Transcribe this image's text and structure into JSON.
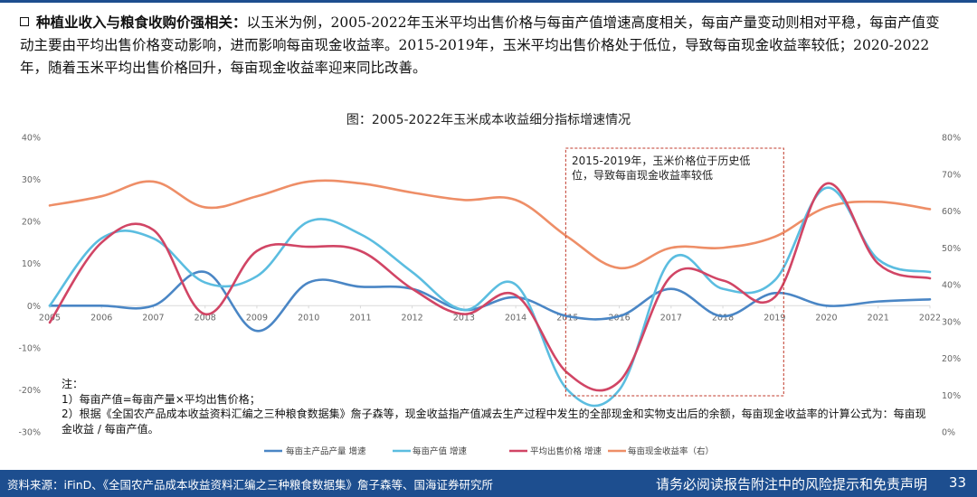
{
  "intro": {
    "lead": "种植业收入与粮食收购价强相关：",
    "body": "以玉米为例，2005-2022年玉米平均出售价格与每亩产值增速高度相关，每亩产量变动则相对平稳，每亩产值变动主要由平均出售价格变动影响，进而影响每亩现金收益率。2015-2019年，玉米平均出售价格处于低位，导致每亩现金收益率较低；2020-2022年，随着玉米平均出售价格回升，每亩现金收益率迎来同比改善。"
  },
  "annotation": {
    "line1": "2015-2019年，玉米价格位于历史低",
    "line2": "位，导致每亩现金收益率较低"
  },
  "notes": {
    "title": "注：",
    "n1": "1）每亩产值=每亩产量×平均出售价格；",
    "n2": "2）根据《全国农产品成本收益资料汇编之三种粮食数据集》詹子森等，现金收益指产值减去生产过程中发生的全部现金和实物支出后的余额，每亩现金收益率的计算公式为：每亩现金收益 / 每亩产值。"
  },
  "footer": {
    "source": "资料来源：iFinD、《全国农产品成本收益资料汇编之三种粮食数据集》詹子森等、国海证券研究所",
    "disclaimer": "请务必阅读报告附注中的风险提示和免责声明",
    "page": "33"
  },
  "colors": {
    "yield": "#4a86c5",
    "output": "#5bbde0",
    "price": "#d14565",
    "cash": "#ee8e67",
    "accent": "#1d4e8f",
    "highlight_box": "#c0392b"
  },
  "chart_data": {
    "type": "line",
    "title": "图：2005-2022年玉米成本收益细分指标增速情况",
    "x": [
      "2005",
      "2006",
      "2007",
      "2008",
      "2009",
      "2010",
      "2011",
      "2012",
      "2013",
      "2014",
      "2015",
      "2016",
      "2017",
      "2018",
      "2019",
      "2020",
      "2021",
      "2022"
    ],
    "y_left": {
      "ticks": [
        "40%",
        "30%",
        "20%",
        "10%",
        "0%",
        "-10%",
        "-20%",
        "-30%"
      ],
      "range": [
        -30,
        40
      ]
    },
    "y_right": {
      "ticks": [
        "80%",
        "70%",
        "60%",
        "50%",
        "40%",
        "30%",
        "20%",
        "10%",
        "0%"
      ],
      "range": [
        0,
        80
      ]
    },
    "series": [
      {
        "name": "每亩主产品产量 增速",
        "axis": "left",
        "color_key": "yield",
        "values": [
          0,
          0,
          0,
          8,
          -6,
          5.5,
          4.5,
          4,
          -1,
          2,
          -2.5,
          -2.5,
          4,
          -2.5,
          3,
          0,
          1,
          1.5
        ]
      },
      {
        "name": "每亩产值 增速",
        "axis": "left",
        "color_key": "output",
        "values": [
          0,
          16,
          16,
          5.5,
          7,
          20,
          17,
          8,
          -1,
          5,
          -20,
          -20,
          11,
          4,
          6,
          28,
          11,
          8
        ]
      },
      {
        "name": "平均出售价格 增速",
        "axis": "left",
        "color_key": "price",
        "values": [
          -4,
          15,
          18,
          -2,
          13,
          14,
          13,
          4,
          -2,
          2.5,
          -16,
          -18,
          7,
          6,
          2,
          29,
          10,
          6.5
        ]
      },
      {
        "name": "每亩现金收益率（右）",
        "axis": "right",
        "color_key": "cash",
        "values": [
          61.5,
          64,
          68,
          61,
          64,
          68,
          67.5,
          65,
          63,
          63,
          53,
          44.5,
          50,
          50,
          53,
          61,
          62.5,
          60.5
        ]
      }
    ],
    "highlight": {
      "from": "2015",
      "to": "2019",
      "style": "dashed red box"
    },
    "legend_position": "bottom",
    "grid": false
  }
}
